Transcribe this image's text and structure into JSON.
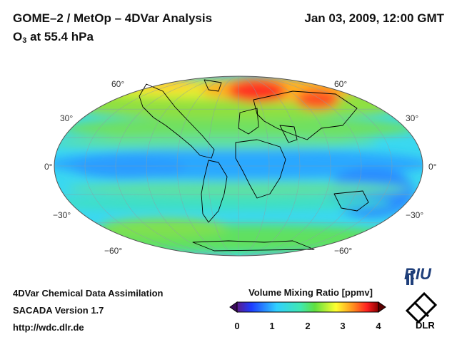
{
  "header": {
    "title": "GOME–2 / MetOp – 4DVar Analysis",
    "datetime": "Jan 03, 2009, 12:00 GMT",
    "species": "O",
    "species_sub": "3",
    "level": " at 55.4 hPa"
  },
  "map": {
    "projection": "Mollweide",
    "lat_labels": [
      "60°",
      "30°",
      "0°",
      "−30°",
      "−60°"
    ]
  },
  "footer": {
    "line1": "4DVar Chemical Data Assimilation",
    "line2": "SACADA Version 1.7",
    "url": "http://wdc.dlr.de"
  },
  "colorbar": {
    "title": "Volume Mixing Ratio [ppmv]",
    "ticks": [
      "0",
      "1",
      "2",
      "3",
      "4"
    ],
    "min": 0,
    "max": 4
  },
  "logos": {
    "riu": "RIU",
    "dlr": "DLR"
  },
  "colors": {
    "low": "#1e3cff",
    "mid": "#30d0ff",
    "green": "#60e040",
    "yellow": "#ffff30",
    "high": "#ff2020",
    "max": "#8b0000"
  }
}
